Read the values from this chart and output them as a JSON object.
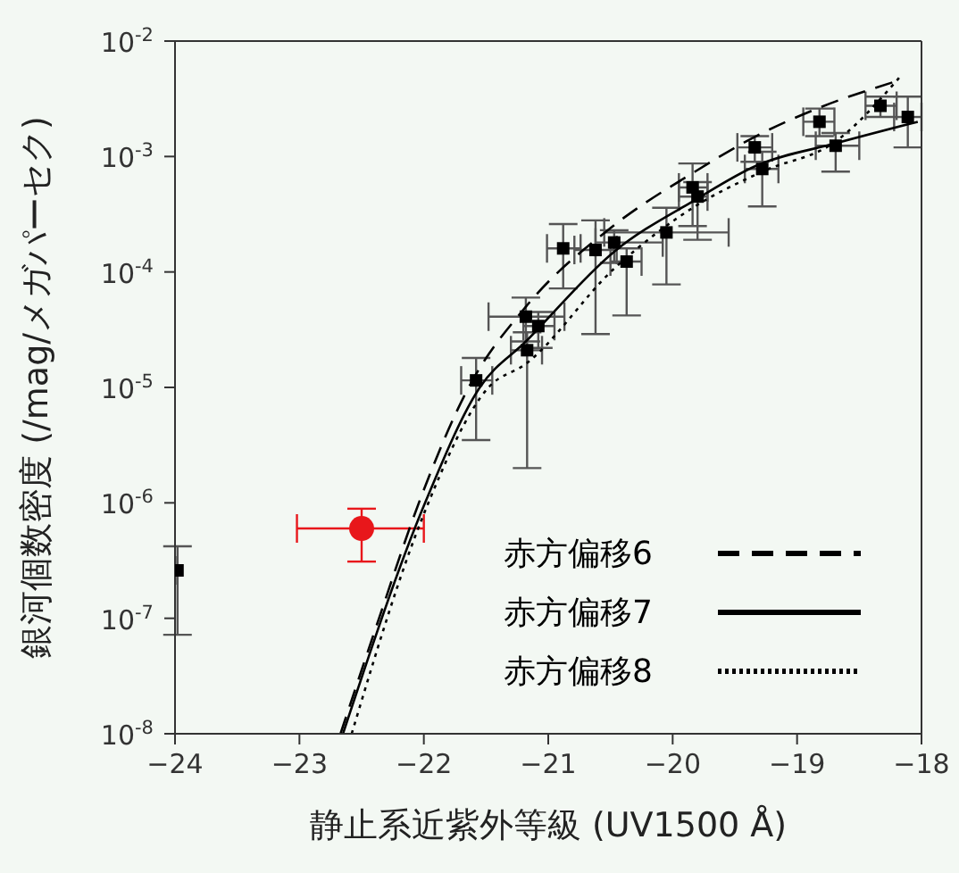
{
  "chart_data": {
    "type": "scatter",
    "xlabel": "静止系近紫外等級 (UV1500 Å)",
    "ylabel": "銀河個数密度 (/mag/メガパーセク)",
    "xlim": [
      -24,
      -18
    ],
    "xticks": [
      -24,
      -23,
      -22,
      -21,
      -20,
      -19,
      -18
    ],
    "ylim": [
      1e-08,
      0.01
    ],
    "yticks": [
      {
        "value": 1e-08,
        "label": "10$^{-8}$"
      },
      {
        "value": 1e-07,
        "label": "10$^{-7}$"
      },
      {
        "value": 1e-06,
        "label": "10$^{-6}$"
      },
      {
        "value": 1e-05,
        "label": "10$^{-5}$"
      },
      {
        "value": 0.0001,
        "label": "10$^{-4}$"
      },
      {
        "value": 0.001,
        "label": "10$^{-3}$"
      },
      {
        "value": 0.01,
        "label": "10$^{-2}$"
      }
    ],
    "log": "y",
    "grid": false,
    "legend": "bottom right",
    "series": [
      {
        "color": "#000000",
        "marker": "square",
        "x": [
          -23.98,
          -21.58,
          -21.18,
          -21.17,
          -21.08,
          -20.88,
          -20.62,
          -20.47,
          -20.37,
          -20.05,
          -19.84,
          -19.8,
          -19.34,
          -19.28,
          -18.82,
          -18.69,
          -18.33,
          -18.11
        ],
        "values": [
          2.6e-07,
          1.15e-05,
          4.1e-05,
          2.1e-05,
          3.4e-05,
          0.00016,
          0.000155,
          0.00018,
          0.000123,
          0.00022,
          0.00054,
          0.00045,
          0.0012,
          0.00078,
          0.002,
          0.00124,
          0.00275,
          0.0022
        ],
        "errors": [
          [
            7.2e-08,
            4.2e-07
          ],
          [
            3.5e-06,
            1.8e-05
          ],
          [
            2.5e-05,
            6e-05
          ],
          [
            2e-06,
            3e-05
          ],
          [
            2.2e-05,
            4.5e-05
          ],
          [
            7.2e-05,
            0.00026
          ],
          [
            2.9e-05,
            0.00028
          ],
          [
            0.00012,
            0.00023
          ],
          [
            4.2e-05,
            0.00016
          ],
          [
            7.8e-05,
            0.00036
          ],
          [
            0.00025,
            0.00087
          ],
          [
            0.00019,
            0.0006
          ],
          [
            0.0009,
            0.0015
          ],
          [
            0.00037,
            0.0011
          ],
          [
            0.0015,
            0.0026
          ],
          [
            0.00074,
            0.0016
          ],
          [
            0.0022,
            0.0033
          ],
          [
            0.0012,
            0.0033
          ]
        ],
        "xerrors": [
          null,
          [
            -21.7,
            -21.45
          ],
          [
            -21.48,
            -20.87
          ],
          [
            -21.3,
            -21.05
          ],
          [
            -21.2,
            -20.95
          ],
          [
            -21.01,
            -20.74
          ],
          [
            -20.79,
            -20.45
          ],
          [
            -20.62,
            -20.08
          ],
          [
            -20.5,
            -20.25
          ],
          [
            -20.55,
            -19.55
          ],
          [
            -19.95,
            -19.72
          ],
          [
            -19.95,
            -19.72
          ],
          [
            -19.48,
            -19.2
          ],
          [
            -19.42,
            -19.15
          ],
          [
            -18.95,
            -18.7
          ],
          [
            -18.85,
            -18.5
          ],
          [
            -18.45,
            -18.2
          ],
          [
            -18.22,
            -18.0
          ]
        ]
      },
      {
        "color": "#e8171b",
        "marker": "circle",
        "x": [
          -22.5
        ],
        "values": [
          6e-07
        ],
        "errors": [
          [
            3.1e-07,
            8.9e-07
          ]
        ],
        "xerrors": [
          [
            -23.02,
            -22.0
          ]
        ]
      },
      {
        "type": "line",
        "name": "赤方偏移6",
        "color": "#000000",
        "line_style": "dashed",
        "x": [
          -22.67,
          -22.36,
          -22.04,
          -21.64,
          -21.18,
          -20.5,
          -19.82,
          -19.33,
          -18.84,
          -18.2
        ],
        "values": [
          1e-08,
          1e-07,
          1e-06,
          1e-05,
          5e-05,
          0.00024,
          0.00074,
          0.0015,
          0.0026,
          0.0045
        ]
      },
      {
        "type": "line",
        "name": "赤方偏移7",
        "color": "#000000",
        "line_style": "solid",
        "x": [
          -22.65,
          -21.99,
          -21.55,
          -21.18,
          -20.47,
          -19.82,
          -19.33,
          -18.69,
          -18.03
        ],
        "values": [
          1e-08,
          1e-06,
          1e-05,
          2.5e-05,
          0.00015,
          0.00042,
          0.00083,
          0.0013,
          0.002
        ]
      },
      {
        "type": "line",
        "name": "赤方偏移8",
        "color": "#000000",
        "line_style": "dotted",
        "x": [
          -22.58,
          -22.0,
          -21.48,
          -21.18,
          -20.47,
          -19.82,
          -19.28,
          -18.69,
          -18.18
        ],
        "values": [
          1e-08,
          8e-07,
          1e-05,
          1.6e-05,
          0.000107,
          0.00037,
          0.00074,
          0.00135,
          0.0048
        ]
      }
    ]
  }
}
